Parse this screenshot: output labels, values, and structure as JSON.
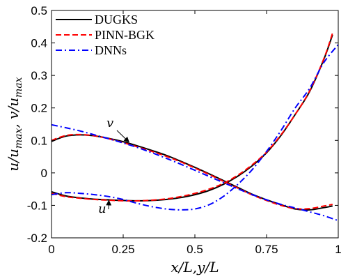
{
  "chart_data": {
    "type": "line",
    "xlabel": "x/L,y/L",
    "ylabel": "u/u_max, v/u_max",
    "xlim": [
      0,
      1
    ],
    "ylim": [
      -0.2,
      0.5
    ],
    "xticks": [
      "0",
      "0.25",
      "0.5",
      "0.75",
      "1"
    ],
    "yticks": [
      "-0.2",
      "-0.1",
      "0",
      "0.1",
      "0.2",
      "0.3",
      "0.4",
      "0.5"
    ],
    "grid": false,
    "legend_position": "top-left",
    "annotations": [
      {
        "label": "v",
        "points_to": [
          0.27,
          0.095
        ]
      },
      {
        "label": "u",
        "points_to": [
          0.2,
          -0.085
        ]
      }
    ],
    "series": [
      {
        "name": "DUGKS",
        "color": "#000000",
        "style": "solid",
        "curves": [
          {
            "variable": "v",
            "x": [
              0,
              0.05,
              0.1,
              0.15,
              0.2,
              0.25,
              0.3,
              0.35,
              0.4,
              0.45,
              0.5,
              0.55,
              0.6,
              0.65,
              0.7,
              0.75,
              0.8,
              0.85,
              0.9,
              0.95,
              0.98
            ],
            "y": [
              0.097,
              0.113,
              0.117,
              0.114,
              0.106,
              0.096,
              0.083,
              0.069,
              0.054,
              0.036,
              0.017,
              -0.003,
              -0.024,
              -0.045,
              -0.066,
              -0.083,
              -0.098,
              -0.111,
              -0.114,
              -0.107,
              -0.102
            ]
          },
          {
            "variable": "u",
            "x": [
              0,
              0.05,
              0.1,
              0.15,
              0.2,
              0.25,
              0.3,
              0.35,
              0.4,
              0.45,
              0.5,
              0.55,
              0.6,
              0.65,
              0.7,
              0.75,
              0.8,
              0.85,
              0.9,
              0.95,
              0.98
            ],
            "y": [
              -0.058,
              -0.071,
              -0.077,
              -0.081,
              -0.083,
              -0.085,
              -0.086,
              -0.085,
              -0.082,
              -0.076,
              -0.067,
              -0.054,
              -0.035,
              -0.01,
              0.022,
              0.062,
              0.115,
              0.18,
              0.25,
              0.35,
              0.425
            ]
          }
        ]
      },
      {
        "name": "PINN-BGK",
        "color": "#ff0000",
        "style": "dashed",
        "curves": [
          {
            "variable": "v",
            "x": [
              0,
              0.05,
              0.1,
              0.15,
              0.2,
              0.25,
              0.3,
              0.35,
              0.4,
              0.45,
              0.5,
              0.55,
              0.6,
              0.65,
              0.7,
              0.75,
              0.8,
              0.85,
              0.9,
              0.95,
              0.98
            ],
            "y": [
              0.1,
              0.115,
              0.118,
              0.114,
              0.105,
              0.093,
              0.08,
              0.066,
              0.051,
              0.034,
              0.015,
              -0.005,
              -0.026,
              -0.047,
              -0.068,
              -0.085,
              -0.1,
              -0.11,
              -0.11,
              -0.102,
              -0.097
            ]
          },
          {
            "variable": "u",
            "x": [
              0,
              0.05,
              0.1,
              0.15,
              0.2,
              0.25,
              0.3,
              0.35,
              0.4,
              0.45,
              0.5,
              0.55,
              0.6,
              0.65,
              0.7,
              0.75,
              0.8,
              0.85,
              0.9,
              0.95,
              0.98
            ],
            "y": [
              -0.063,
              -0.073,
              -0.078,
              -0.082,
              -0.084,
              -0.086,
              -0.086,
              -0.084,
              -0.08,
              -0.073,
              -0.063,
              -0.05,
              -0.032,
              -0.007,
              0.025,
              0.064,
              0.117,
              0.18,
              0.252,
              0.352,
              0.43
            ]
          }
        ]
      },
      {
        "name": "DNNs",
        "color": "#0000ff",
        "style": "dashdot",
        "curves": [
          {
            "variable": "v",
            "x": [
              0,
              0.05,
              0.1,
              0.15,
              0.2,
              0.25,
              0.3,
              0.35,
              0.4,
              0.45,
              0.5,
              0.55,
              0.6,
              0.65,
              0.7,
              0.75,
              0.8,
              0.85,
              0.9,
              0.95,
              1.0
            ],
            "y": [
              0.148,
              0.139,
              0.129,
              0.117,
              0.105,
              0.092,
              0.078,
              0.062,
              0.045,
              0.027,
              0.008,
              -0.011,
              -0.03,
              -0.049,
              -0.067,
              -0.083,
              -0.097,
              -0.108,
              -0.12,
              -0.132,
              -0.147
            ]
          },
          {
            "variable": "u",
            "x": [
              0,
              0.05,
              0.1,
              0.15,
              0.2,
              0.25,
              0.3,
              0.35,
              0.4,
              0.45,
              0.5,
              0.55,
              0.6,
              0.65,
              0.7,
              0.75,
              0.8,
              0.85,
              0.9,
              0.95,
              1.0
            ],
            "y": [
              -0.067,
              -0.061,
              -0.063,
              -0.067,
              -0.073,
              -0.082,
              -0.094,
              -0.104,
              -0.111,
              -0.114,
              -0.111,
              -0.098,
              -0.072,
              -0.035,
              0.01,
              0.066,
              0.13,
              0.2,
              0.26,
              0.34,
              0.395
            ]
          }
        ]
      }
    ]
  }
}
